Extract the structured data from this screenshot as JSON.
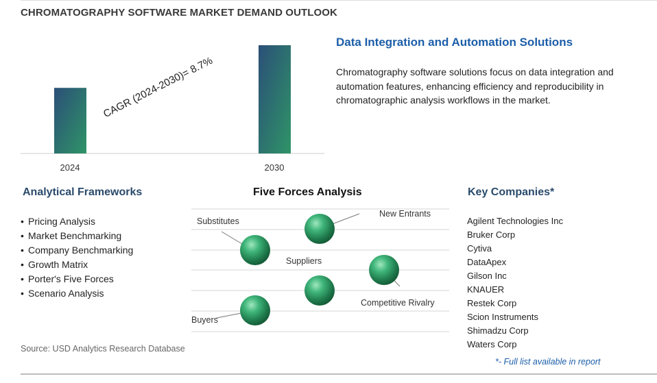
{
  "title": "CHROMATOGRAPHY SOFTWARE MARKET DEMAND OUTLOOK",
  "chart_data": {
    "type": "bar",
    "categories": [
      "2024",
      "2030"
    ],
    "values": [
      1.0,
      1.65
    ],
    "annotation": "CAGR (2024-2030)=  8.7%",
    "colors": [
      "#2d5b76",
      "#2f8a64"
    ]
  },
  "feature": {
    "heading": "Data Integration and Automation Solutions",
    "text": "Chromatography software solutions focus on data integration and automation features, enhancing efficiency and reproducibility in chromatographic analysis workflows in the market."
  },
  "frameworks": {
    "heading": "Analytical Frameworks",
    "items": [
      "Pricing Analysis",
      "Market Benchmarking",
      "Company Benchmarking",
      "Growth Matrix",
      "Porter's Five Forces",
      "Scenario Analysis"
    ]
  },
  "forces": {
    "heading": "Five Forces Analysis",
    "labels": {
      "substitutes": "Substitutes",
      "new_entrants": "New Entrants",
      "suppliers": "Suppliers",
      "competitive_rivalry": "Competitive Rivalry",
      "buyers": "Buyers"
    }
  },
  "companies": {
    "heading": "Key Companies*",
    "items": [
      "Agilent Technologies Inc",
      "Bruker Corp",
      "Cytiva",
      "DataApex",
      "Gilson Inc",
      "KNAUER",
      "Restek Corp",
      "Scion Instruments",
      "Shimadzu Corp",
      "Waters Corp"
    ],
    "note": "*- Full list available in report"
  },
  "source": "Source: USD Analytics Research Database"
}
